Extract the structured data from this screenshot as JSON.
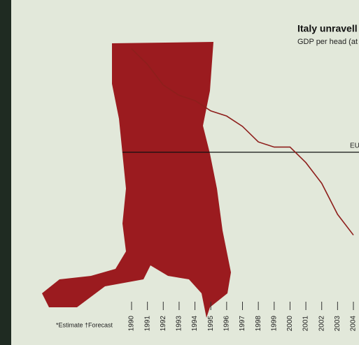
{
  "chart_data": {
    "type": "line",
    "title": "Italy unravell",
    "subtitle": "GDP per head (at",
    "footnote": "*Estimate †Forecast",
    "reference_label": "EU",
    "reference_value": 100,
    "x": [
      1990,
      1991,
      1992,
      1993,
      1994,
      1995,
      1996,
      1997,
      1998,
      1999,
      2000,
      2001,
      2002,
      2003,
      2004
    ],
    "series": [
      {
        "color": "#8e1f1c",
        "values": [
          120,
          117,
          113,
          111,
          110,
          108,
          107,
          105,
          102,
          101,
          101,
          98,
          94,
          88,
          84
        ]
      }
    ],
    "xlim": [
      1990,
      2004
    ],
    "ylim": [
      78,
      127
    ],
    "xticks": [
      1990,
      1991,
      1992,
      1993,
      1994,
      1995,
      1996,
      1997,
      1998,
      1999,
      2000,
      2001,
      2002,
      2003,
      2004
    ]
  }
}
